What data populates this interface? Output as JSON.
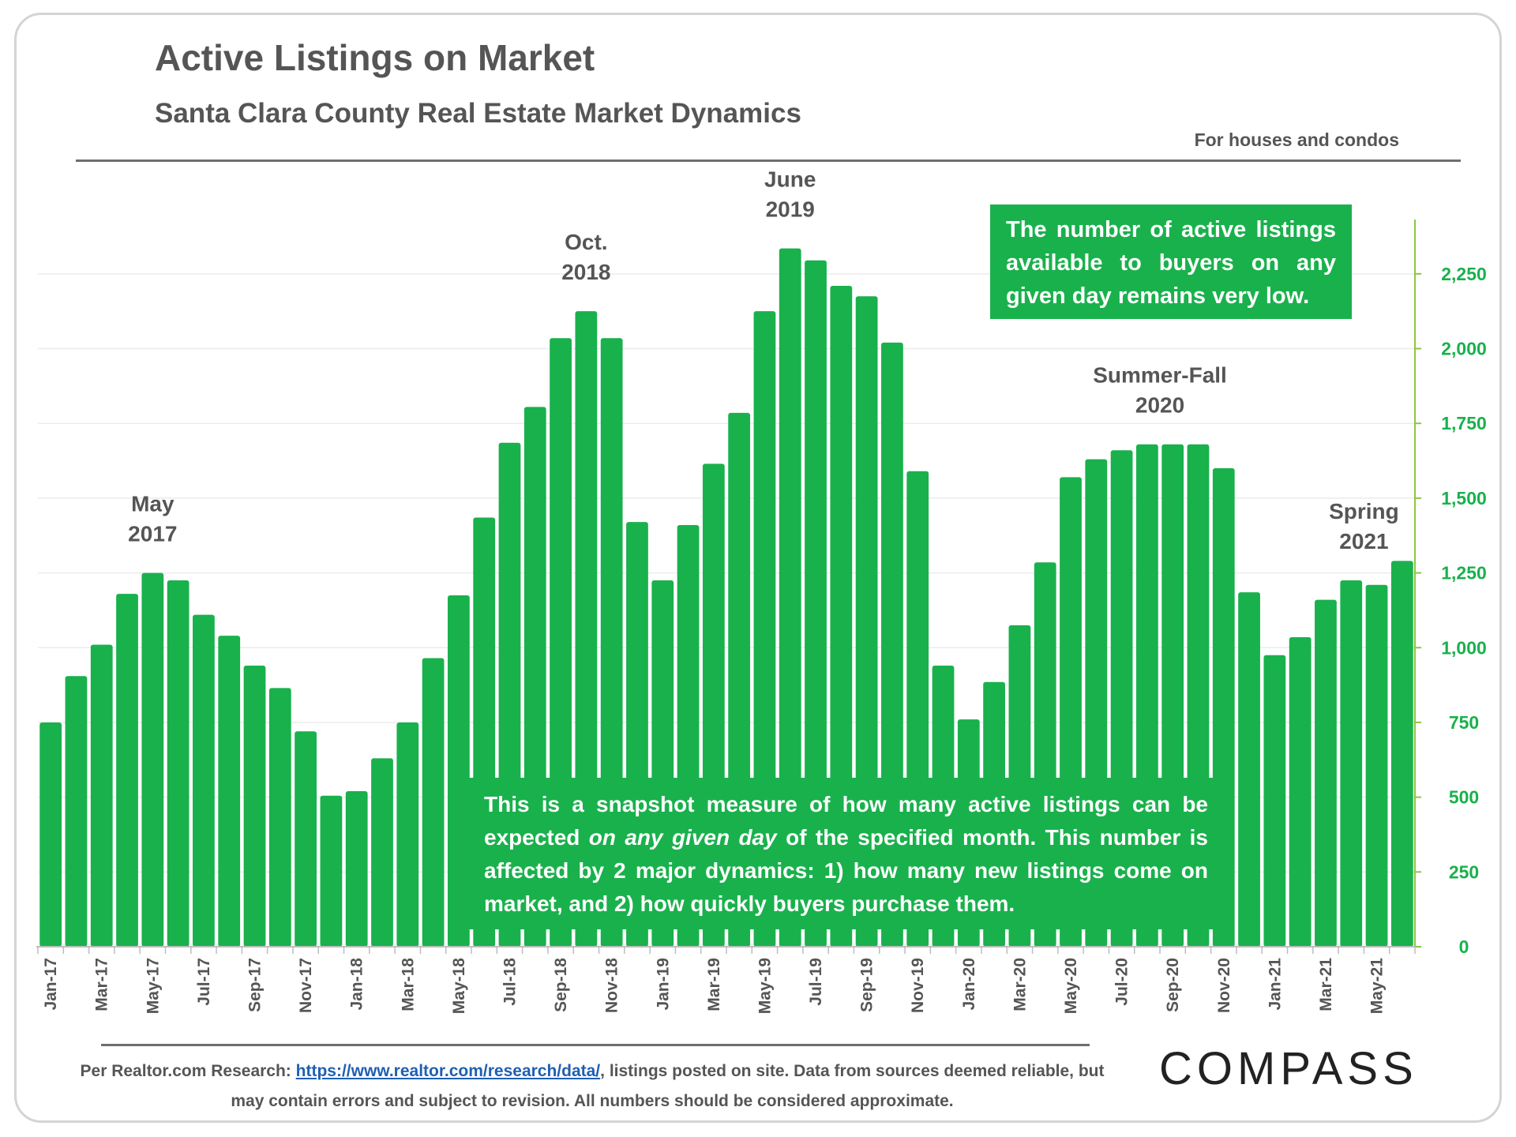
{
  "header": {
    "title": "Active Listings on Market",
    "subtitle": "Santa Clara County Real Estate Market Dynamics",
    "note": "For houses and condos"
  },
  "callouts": {
    "top": "The number of active listings available to buyers on any given day remains very low.",
    "bottom_part1": "This is a snapshot measure of how many active listings can be expected ",
    "bottom_emph": "on any given day",
    "bottom_part2": " of the specified month. This number is affected by 2 major dynamics: 1) how many new listings come on market, and 2) how quickly buyers purchase them."
  },
  "footer": {
    "prefix": "Per Realtor.com Research: ",
    "link": "https://www.realtor.com/research/data/",
    "suffix": ", listings posted on site. Data from sources deemed reliable, but may contain errors and subject to revision. All numbers should be considered approximate."
  },
  "logo": "COMPASS",
  "colors": {
    "bar": "#19b14c",
    "axis_text": "#19b14c",
    "label_text": "#555555"
  },
  "chart_data": {
    "type": "bar",
    "title": "Active Listings on Market",
    "ylim": [
      0,
      2400
    ],
    "yticks": [
      0,
      250,
      500,
      750,
      1000,
      1250,
      1500,
      1750,
      2000,
      2250
    ],
    "ytick_labels": [
      "0",
      "250",
      "500",
      "750",
      "1,000",
      "1,250",
      "1,500",
      "1,750",
      "2,000",
      "2,250"
    ],
    "y_axis_position": "right",
    "categories": [
      "Jan-17",
      "Feb-17",
      "Mar-17",
      "Apr-17",
      "May-17",
      "Jun-17",
      "Jul-17",
      "Aug-17",
      "Sep-17",
      "Oct-17",
      "Nov-17",
      "Dec-17",
      "Jan-18",
      "Feb-18",
      "Mar-18",
      "Apr-18",
      "May-18",
      "Jun-18",
      "Jul-18",
      "Aug-18",
      "Sep-18",
      "Oct-18",
      "Nov-18",
      "Dec-18",
      "Jan-19",
      "Feb-19",
      "Mar-19",
      "Apr-19",
      "May-19",
      "Jun-19",
      "Jul-19",
      "Aug-19",
      "Sep-19",
      "Oct-19",
      "Nov-19",
      "Dec-19",
      "Jan-20",
      "Feb-20",
      "Mar-20",
      "Apr-20",
      "May-20",
      "Jun-20",
      "Jul-20",
      "Aug-20",
      "Sep-20",
      "Oct-20",
      "Nov-20",
      "Dec-20",
      "Jan-21",
      "Feb-21",
      "Mar-21",
      "Apr-21",
      "May-21",
      "Jun-21"
    ],
    "values": [
      750,
      905,
      1010,
      1180,
      1250,
      1225,
      1110,
      1040,
      940,
      865,
      720,
      505,
      520,
      630,
      750,
      965,
      1175,
      1435,
      1685,
      1805,
      2035,
      2125,
      2035,
      1420,
      1225,
      1410,
      1615,
      1785,
      2125,
      2335,
      2295,
      2210,
      2175,
      2020,
      1590,
      940,
      760,
      885,
      1075,
      1285,
      1570,
      1630,
      1660,
      1680,
      1680,
      1680,
      1600,
      1185,
      975,
      1035,
      1160,
      1225,
      1210,
      1290
    ],
    "xtick_labels": [
      "Jan-17",
      "Mar-17",
      "May-17",
      "Jul-17",
      "Sep-17",
      "Nov-17",
      "Jan-18",
      "Mar-18",
      "May-18",
      "Jul-18",
      "Sep-18",
      "Nov-18",
      "Jan-19",
      "Mar-19",
      "May-19",
      "Jul-19",
      "Sep-19",
      "Nov-19",
      "Jan-20",
      "Mar-20",
      "May-20",
      "Jul-20",
      "Sep-20",
      "Nov-20",
      "Jan-21",
      "Mar-21",
      "May-21"
    ],
    "annotations": [
      {
        "line1": "May",
        "line2": "2017",
        "index": 4
      },
      {
        "line1": "Oct.",
        "line2": "2018",
        "index": 21
      },
      {
        "line1": "June",
        "line2": "2019",
        "index": 29
      },
      {
        "line1": "Summer-Fall",
        "line2": "2020",
        "index": 43.5
      },
      {
        "line1": "Spring",
        "line2": "2021",
        "index": 51.5
      }
    ]
  }
}
